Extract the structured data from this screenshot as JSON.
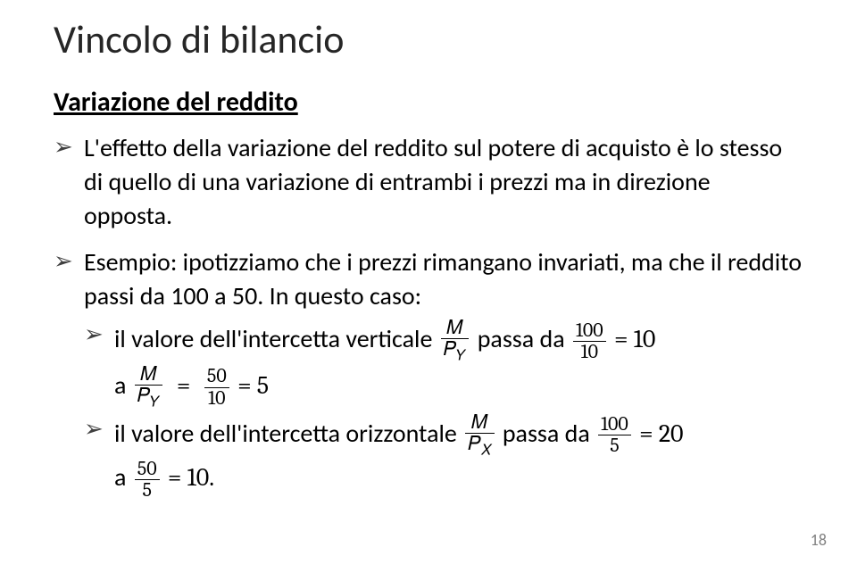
{
  "title": "Vincolo di bilancio",
  "subtitle": "Variazione del reddito",
  "bullet1": "L'effetto della variazione del reddito sul potere di acquisto è lo stesso di quello di una variazione di entrambi i prezzi ma in direzione opposta.",
  "bullet2_lead": "Esempio: ipotizziamo che i prezzi rimangano invariati, ma che il reddito passi da 100 a 50. In questo caso:",
  "sub1_a": "il valore dell'intercetta verticale ",
  "sub1_b": " passa da ",
  "sub1_c": " a ",
  "sub2_a": "il valore dell'intercetta orizzontale ",
  "sub2_b": " passa da ",
  "sub2_c": " a ",
  "frac_M": "𝑀",
  "frac_PY": "𝑃",
  "frac_PX": "𝑃",
  "Y": "𝑌",
  "X": "𝑋",
  "v100": "100",
  "v10": "10",
  "v50": "50",
  "v5": "5",
  "eq10": " = 10",
  "eq5": " = 5",
  "eq20": " = 20",
  "eq10b": " = 10.",
  "pagenum": "18"
}
